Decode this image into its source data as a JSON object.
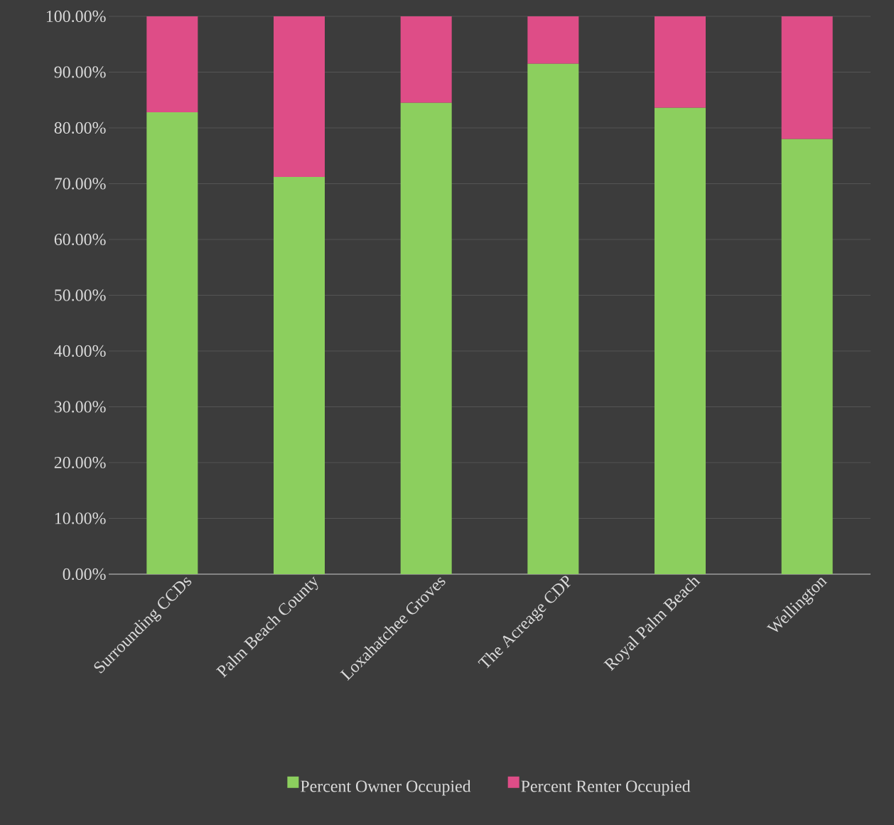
{
  "chart_data": {
    "type": "bar",
    "stacked": true,
    "categories": [
      "Surrounding CCDs",
      "Palm Beach County",
      "Loxahatchee Groves",
      "The Acreage CDP",
      "Royal Palm Beach",
      "Wellington"
    ],
    "series": [
      {
        "name": "Percent Owner Occupied",
        "color": "#8ccf5e",
        "values": [
          82.8,
          71.2,
          84.5,
          91.5,
          83.6,
          78.0
        ]
      },
      {
        "name": "Percent Renter Occupied",
        "color": "#de4d87",
        "values": [
          17.2,
          28.8,
          15.5,
          8.5,
          16.4,
          22.0
        ]
      }
    ],
    "ylim": [
      0,
      100
    ],
    "yticks": [
      {
        "value": 0,
        "label": "0.00%"
      },
      {
        "value": 10,
        "label": "10.00%"
      },
      {
        "value": 20,
        "label": "20.00%"
      },
      {
        "value": 30,
        "label": "30.00%"
      },
      {
        "value": 40,
        "label": "40.00%"
      },
      {
        "value": 50,
        "label": "50.00%"
      },
      {
        "value": 60,
        "label": "60.00%"
      },
      {
        "value": 70,
        "label": "70.00%"
      },
      {
        "value": 80,
        "label": "80.00%"
      },
      {
        "value": 90,
        "label": "90.00%"
      },
      {
        "value": 100,
        "label": "100.00%"
      }
    ],
    "grid": "y",
    "legend": "bottom"
  }
}
